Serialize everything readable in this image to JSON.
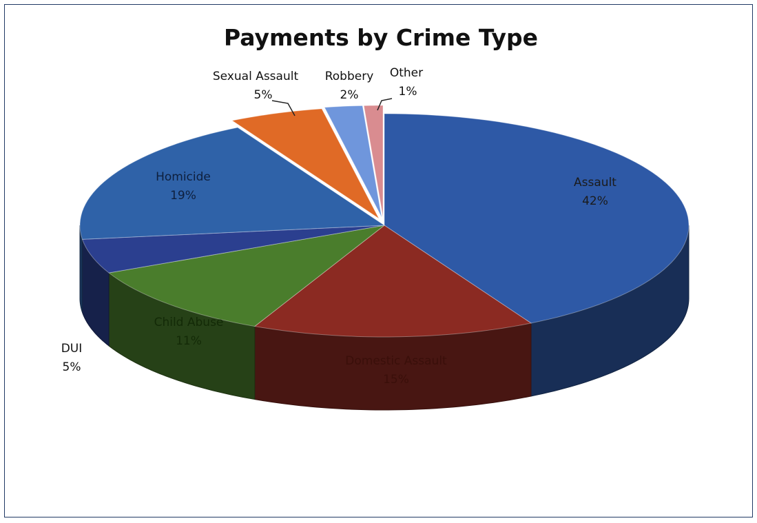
{
  "chart_data": {
    "type": "pie",
    "title": "Payments by Crime Type",
    "style": "3d-exploded",
    "slices": [
      {
        "name": "Assault",
        "value": 42,
        "label": "42%",
        "color": "#2e59a6"
      },
      {
        "name": "Domestic Assault",
        "value": 15,
        "label": "15%",
        "color": "#8b2a22"
      },
      {
        "name": "Child Abuse",
        "value": 11,
        "label": "11%",
        "color": "#4a7d2c"
      },
      {
        "name": "DUI",
        "value": 5,
        "label": "5%",
        "color": "#2b3f8f"
      },
      {
        "name": "Homicide",
        "value": 19,
        "label": "19%",
        "color": "#2f62a8"
      },
      {
        "name": "Sexual Assault",
        "value": 5,
        "label": "5%",
        "color": "#e06a26"
      },
      {
        "name": "Robbery",
        "value": 2,
        "label": "2%",
        "color": "#6f96dc"
      },
      {
        "name": "Other",
        "value": 1,
        "label": "1%",
        "color": "#d98c90"
      }
    ]
  }
}
